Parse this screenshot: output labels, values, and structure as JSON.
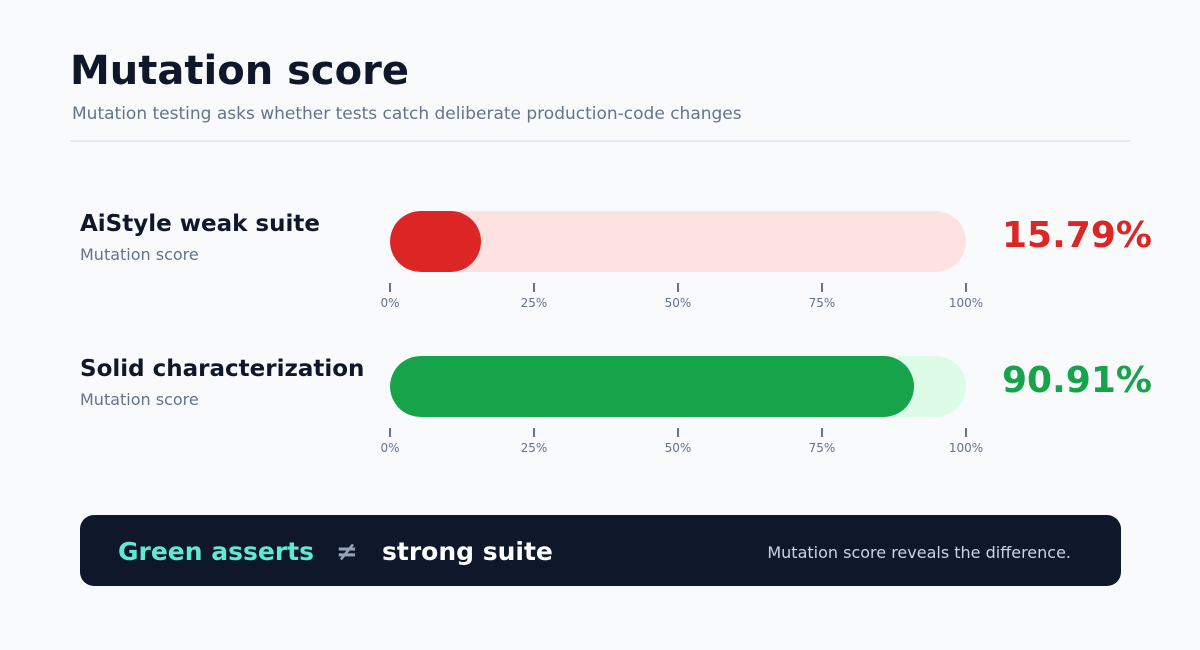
{
  "header": {
    "title": "Mutation score",
    "subtitle": "Mutation testing asks whether tests catch deliberate production-code changes"
  },
  "chart_data": {
    "type": "bar",
    "title": "Mutation score",
    "xlim": [
      0,
      100
    ],
    "tick_labels": [
      "0%",
      "25%",
      "50%",
      "75%",
      "100%"
    ],
    "series": [
      {
        "name": "AiStyle weak suite",
        "sublabel": "Mutation score",
        "value": 15.79,
        "value_label": "15.79%",
        "color": "#dc2626",
        "track_color": "#fee2e2"
      },
      {
        "name": "Solid characterization",
        "sublabel": "Mutation score",
        "value": 90.91,
        "value_label": "90.91%",
        "color": "#16a34a",
        "track_color": "#dcfce7"
      }
    ]
  },
  "banner": {
    "left": "Green asserts",
    "symbol": "≠",
    "right": "strong suite",
    "note": "Mutation score reveals the difference."
  }
}
